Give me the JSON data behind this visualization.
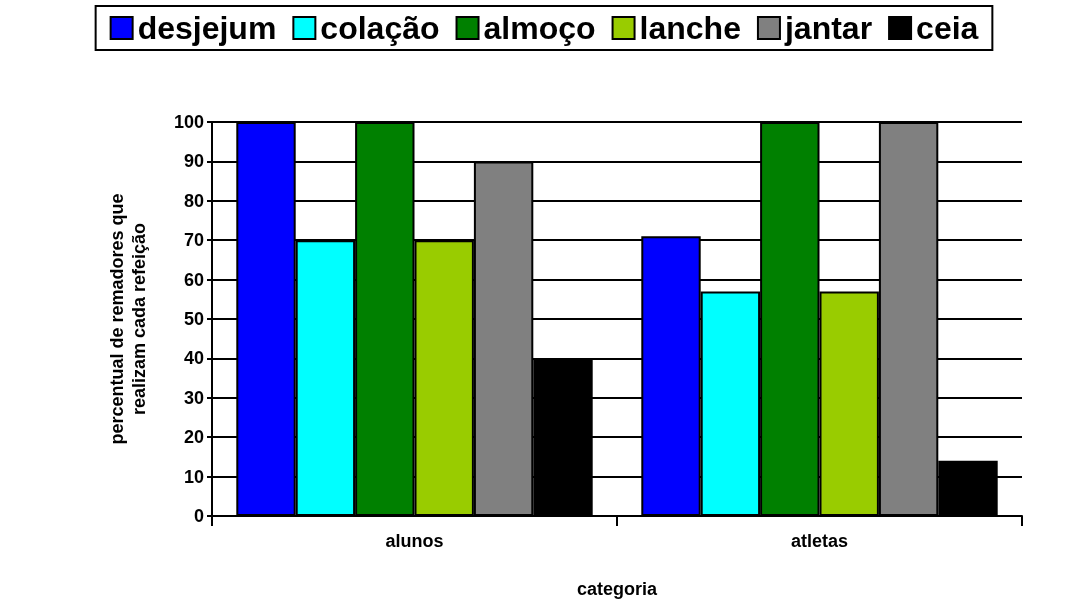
{
  "chart_data": {
    "type": "bar",
    "xlabel": "categoria",
    "ylabel": "percentual de remadores que\nrealizam cada refeição",
    "categories": [
      "alunos",
      "atletas"
    ],
    "series": [
      {
        "name": "desjejum",
        "color": "#0000ff",
        "values": [
          100,
          71
        ]
      },
      {
        "name": "colação",
        "color": "#00ffff",
        "values": [
          70,
          57
        ]
      },
      {
        "name": "almoço",
        "color": "#008000",
        "values": [
          100,
          100
        ]
      },
      {
        "name": "lanche",
        "color": "#99cc00",
        "values": [
          70,
          57
        ]
      },
      {
        "name": "jantar",
        "color": "#808080",
        "values": [
          90,
          100
        ]
      },
      {
        "name": "ceia",
        "color": "#000000",
        "values": [
          40,
          14
        ]
      }
    ],
    "ylim": [
      0,
      100
    ],
    "yticks": [
      0,
      10,
      20,
      30,
      40,
      50,
      60,
      70,
      80,
      90,
      100
    ],
    "grid": "y",
    "legend": "top"
  }
}
